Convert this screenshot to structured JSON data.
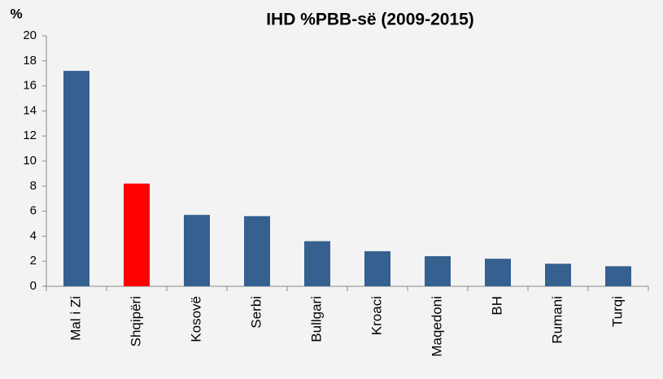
{
  "chart_data": {
    "type": "bar",
    "title": "IHD %PBB-së (2009-2015)",
    "y_label": "%",
    "categories": [
      "Mal i Zi",
      "Shqipëri",
      "Kosovë",
      "Serbi",
      "Bullgari",
      "Kroaci",
      "Maqedoni",
      "BH",
      "Rumani",
      "Turqi"
    ],
    "values": [
      17.2,
      8.2,
      5.7,
      5.6,
      3.6,
      2.8,
      2.4,
      2.2,
      1.8,
      1.6
    ],
    "colors": [
      "#35608f",
      "#ff0000",
      "#35608f",
      "#35608f",
      "#35608f",
      "#35608f",
      "#35608f",
      "#35608f",
      "#35608f",
      "#35608f"
    ],
    "ylim": [
      0,
      20
    ],
    "yticks": [
      0,
      2,
      4,
      6,
      8,
      10,
      12,
      14,
      16,
      18,
      20
    ],
    "grid": false
  }
}
